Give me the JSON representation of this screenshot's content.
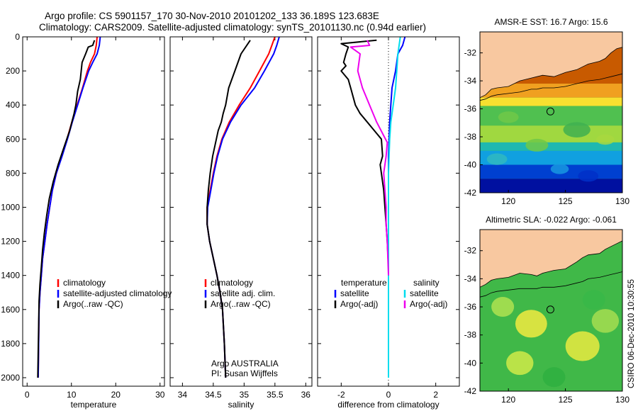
{
  "title": {
    "line1": "Argo profile: CS 5901157_170 30-Nov-2010 20101202_133 36.189S 123.683E",
    "line2": "Climatology: CARS2009. Satellite-adjusted climatology: synTS_20101130.nc (0.94d earlier)"
  },
  "credit": "CSIRO 06-Dec-2010 10:30:55",
  "colors": {
    "climatology": "#ff0000",
    "satellite": "#0000ff",
    "argo": "#000000",
    "sal_satellite": "#00ddee",
    "sal_argo": "#ee00ee",
    "land": "#f8c8a0"
  },
  "chart_data": [
    {
      "id": "temp",
      "type": "line",
      "xlabel": "temperature",
      "ylabel": "",
      "xlim": [
        -1,
        31
      ],
      "ylim": [
        2050,
        0
      ],
      "xticks": [
        "0",
        "10",
        "20",
        "30"
      ],
      "xtick_values": [
        0,
        10,
        20,
        30
      ],
      "yticks": [
        "0",
        "200",
        "400",
        "600",
        "800",
        "1000",
        "1200",
        "1400",
        "1600",
        "1800",
        "2000"
      ],
      "ytick_values": [
        0,
        200,
        400,
        600,
        800,
        1000,
        1200,
        1400,
        1600,
        1800,
        2000
      ],
      "legend": [
        "climatology",
        "satellite-adjusted climatology",
        "Argo(..raw -QC)"
      ],
      "legend_colors": [
        "#ff0000",
        "#0000ff",
        "#000000"
      ],
      "series": [
        {
          "name": "climatology",
          "color": "#ff0000",
          "x": [
            15.8,
            15.6,
            15.2,
            14.3,
            13.6,
            12.5,
            11.3,
            10.1,
            9.0,
            7.8,
            6.6,
            5.7,
            5.1,
            4.5,
            4.0,
            3.5,
            3.2,
            2.9,
            2.7,
            2.6,
            2.5
          ],
          "y": [
            0,
            50,
            100,
            150,
            200,
            300,
            400,
            500,
            600,
            700,
            800,
            900,
            1000,
            1100,
            1200,
            1300,
            1400,
            1500,
            1600,
            1800,
            2000
          ]
        },
        {
          "name": "satellite-adjusted climatology",
          "color": "#0000ff",
          "x": [
            16.5,
            16.3,
            15.8,
            14.8,
            13.9,
            12.6,
            11.4,
            10.2,
            9.1,
            7.9,
            6.6,
            5.7,
            5.1,
            4.5,
            4.0,
            3.5,
            3.2,
            2.9,
            2.7,
            2.6,
            2.5
          ],
          "y": [
            0,
            50,
            100,
            150,
            200,
            300,
            400,
            500,
            600,
            700,
            800,
            900,
            1000,
            1100,
            1200,
            1300,
            1400,
            1500,
            1600,
            1800,
            2000
          ]
        },
        {
          "name": "Argo(..raw -QC)",
          "color": "#000000",
          "x": [
            15.2,
            14.8,
            13.8,
            13.2,
            12.4,
            12.0,
            11.4,
            11.0,
            10.6,
            9.6,
            8.3,
            7.0,
            5.9,
            5.0,
            4.4,
            3.9,
            3.5,
            3.2,
            2.9,
            2.7,
            2.6,
            2.5,
            2.4
          ],
          "y": [
            20,
            50,
            60,
            100,
            150,
            250,
            320,
            400,
            450,
            550,
            650,
            750,
            850,
            950,
            1050,
            1150,
            1250,
            1350,
            1450,
            1550,
            1700,
            1850,
            2000
          ]
        }
      ]
    },
    {
      "id": "sal",
      "type": "line",
      "xlabel": "salinity",
      "xlim": [
        33.8,
        36.1
      ],
      "ylim": [
        2050,
        0
      ],
      "xticks": [
        "34",
        "34.5",
        "35",
        "35.5",
        "36"
      ],
      "xtick_values": [
        34,
        34.5,
        35,
        35.5,
        36
      ],
      "legend": [
        "climatology",
        "satellite adj. clim.",
        "Argo(..raw -QC)"
      ],
      "legend_colors": [
        "#ff0000",
        "#0000ff",
        "#000000"
      ],
      "annotation": [
        "Argo AUSTRALIA",
        "PI: Susan Wijffels"
      ],
      "series": [
        {
          "name": "climatology",
          "color": "#ff0000",
          "x": [
            35.5,
            35.45,
            35.4,
            35.25,
            35.1,
            34.92,
            34.76,
            34.64,
            34.56,
            34.5,
            34.45,
            34.4,
            34.4,
            34.44,
            34.5,
            34.56,
            34.61,
            34.65,
            34.68,
            34.7
          ],
          "y": [
            0,
            50,
            100,
            200,
            300,
            400,
            500,
            600,
            700,
            800,
            900,
            1000,
            1100,
            1200,
            1300,
            1400,
            1500,
            1600,
            1800,
            2000
          ]
        },
        {
          "name": "satellite adj. clim.",
          "color": "#0000ff",
          "x": [
            35.57,
            35.53,
            35.48,
            35.33,
            35.17,
            34.95,
            34.78,
            34.65,
            34.57,
            34.51,
            34.46,
            34.41,
            34.4,
            34.44,
            34.5,
            34.56,
            34.61,
            34.65,
            34.68,
            34.7
          ],
          "y": [
            0,
            50,
            100,
            200,
            300,
            400,
            500,
            600,
            700,
            800,
            900,
            1000,
            1100,
            1200,
            1300,
            1400,
            1500,
            1600,
            1800,
            2000
          ]
        },
        {
          "name": "Argo(..raw -QC)",
          "color": "#000000",
          "x": [
            35.1,
            34.95,
            34.85,
            34.75,
            34.7,
            34.66,
            34.63,
            34.58,
            34.55,
            34.52,
            34.49,
            34.45,
            34.42,
            34.4,
            34.4,
            34.44,
            34.5,
            34.56,
            34.61,
            34.65,
            34.68,
            34.7
          ],
          "y": [
            20,
            100,
            200,
            300,
            400,
            450,
            500,
            550,
            600,
            650,
            700,
            800,
            900,
            1000,
            1100,
            1200,
            1300,
            1400,
            1500,
            1600,
            1800,
            2000
          ]
        }
      ]
    },
    {
      "id": "diff",
      "type": "line",
      "xlabel": "difference from climatology",
      "xlim": [
        -3,
        3
      ],
      "ylim": [
        2050,
        0
      ],
      "xticks": [
        "-2",
        "0",
        "2"
      ],
      "xtick_values": [
        -2,
        0,
        2
      ],
      "legend_left_header": "temperature",
      "legend_right_header": "salinity",
      "legend_left": [
        "satellite",
        "Argo(-adj)"
      ],
      "legend_right": [
        "satellite",
        "Argo(-adj)"
      ],
      "legend_left_colors": [
        "#0000ff",
        "#000000"
      ],
      "legend_right_colors": [
        "#00ddee",
        "#ee00ee"
      ],
      "series": [
        {
          "name": "temperature satellite",
          "color": "#0000ff",
          "x": [
            0.7,
            0.6,
            0.4,
            0.3,
            0.15,
            0.1,
            0.05,
            0.0,
            0.0,
            0.0
          ],
          "y": [
            0,
            50,
            100,
            200,
            300,
            400,
            500,
            700,
            1000,
            2000
          ]
        },
        {
          "name": "temperature Argo(-adj)",
          "color": "#000000",
          "x": [
            -0.5,
            -2.0,
            -1.7,
            -1.8,
            -1.9,
            -1.8,
            -2.0,
            -1.7,
            -1.6,
            -1.5,
            -1.4,
            -1.2,
            -0.9,
            -0.6,
            -0.3,
            -0.25,
            -0.35,
            -0.3,
            -0.2,
            -0.15,
            -0.1,
            -0.05,
            0.0
          ],
          "y": [
            20,
            40,
            60,
            100,
            150,
            170,
            200,
            250,
            300,
            350,
            400,
            450,
            500,
            550,
            600,
            700,
            750,
            800,
            900,
            1000,
            1100,
            1200,
            1350
          ]
        },
        {
          "name": "salinity satellite",
          "color": "#00ddee",
          "x": [
            0.5,
            0.45,
            0.4,
            0.35,
            0.3,
            0.2,
            0.1,
            0.05,
            0.0,
            0.0,
            0.0
          ],
          "y": [
            0,
            50,
            100,
            200,
            300,
            400,
            500,
            600,
            800,
            1200,
            2000
          ]
        },
        {
          "name": "salinity Argo(-adj)",
          "color": "#ee00ee",
          "x": [
            -0.9,
            -0.8,
            -1.6,
            -1.2,
            -1.3,
            -1.1,
            -0.8,
            -0.5,
            -0.2,
            -0.05,
            -0.1,
            -0.2,
            -0.15,
            -0.1,
            -0.1,
            -0.05,
            0.0
          ],
          "y": [
            20,
            50,
            60,
            100,
            200,
            300,
            400,
            500,
            580,
            620,
            700,
            800,
            900,
            1000,
            1100,
            1200,
            1400
          ]
        }
      ]
    },
    {
      "id": "sst_map",
      "type": "heatmap",
      "title": "AMSR-E SST: 16.7 Argo: 15.6",
      "xlim": [
        117.5,
        130
      ],
      "ylim": [
        -42,
        -30.5
      ],
      "xticks": [
        "120",
        "125",
        "130"
      ],
      "xtick_values": [
        120,
        125,
        130
      ],
      "yticks": [
        "-32",
        "-34",
        "-36",
        "-38",
        "-40",
        "-42"
      ],
      "ytick_values": [
        -32,
        -34,
        -36,
        -38,
        -40,
        -42
      ],
      "float_position": [
        123.683,
        -36.189
      ],
      "coast_lon": [
        117.5,
        118,
        118.5,
        119,
        120,
        121,
        122,
        122.5,
        123,
        124,
        125,
        126,
        126.5,
        127,
        128,
        128.5,
        129,
        129.5,
        130
      ],
      "coast_lat": [
        -35.2,
        -35.0,
        -34.6,
        -34.5,
        -34.4,
        -34.0,
        -33.8,
        -33.7,
        -33.6,
        -33.7,
        -33.4,
        -33.2,
        -33.0,
        -32.8,
        -32.6,
        -32.4,
        -32.0,
        -31.7,
        -31.6
      ],
      "contour_lat": [
        -35.4,
        -35.3,
        -35.1,
        -35.0,
        -34.9,
        -34.8,
        -34.6,
        -34.6,
        -34.5,
        -34.5,
        -34.4,
        -34.2,
        -34.1,
        -34.0,
        -33.9,
        -33.8,
        -33.7,
        -33.6,
        -33.5
      ],
      "color_bands": [
        {
          "lat": -34.2,
          "color": "#c85a00"
        },
        {
          "lat": -35.2,
          "color": "#f0a020"
        },
        {
          "lat": -35.8,
          "color": "#f8e030"
        },
        {
          "lat": -37.2,
          "color": "#50c050"
        },
        {
          "lat": -38.4,
          "color": "#a0d840"
        },
        {
          "lat": -39.0,
          "color": "#20b8b0"
        },
        {
          "lat": -40.0,
          "color": "#10a0e0"
        },
        {
          "lat": -41.0,
          "color": "#0040d0"
        },
        {
          "lat": -42.0,
          "color": "#0010a0"
        }
      ]
    },
    {
      "id": "sla_map",
      "type": "heatmap",
      "title": "Altimetric SLA: -0.022 Argo: -0.061",
      "xlim": [
        117.5,
        130
      ],
      "ylim": [
        -42,
        -30.5
      ],
      "xticks": [
        "120",
        "125",
        "130"
      ],
      "xtick_values": [
        120,
        125,
        130
      ],
      "yticks": [
        "-32",
        "-34",
        "-36",
        "-38",
        "-40",
        "-42"
      ],
      "ytick_values": [
        -32,
        -34,
        -36,
        -38,
        -40,
        -42
      ],
      "float_position": [
        123.683,
        -36.189
      ],
      "coast_lon": [
        117.5,
        118,
        118.5,
        119,
        120,
        121,
        122,
        122.5,
        123,
        124,
        125,
        126,
        126.5,
        127,
        128,
        128.5,
        129,
        129.5,
        130
      ],
      "coast_lat": [
        -34.6,
        -34.4,
        -34.1,
        -34.0,
        -33.9,
        -33.6,
        -33.7,
        -33.8,
        -33.6,
        -33.4,
        -33.3,
        -32.8,
        -32.5,
        -32.3,
        -32.2,
        -31.9,
        -31.7,
        -31.5,
        -31.3
      ],
      "contour_lat": [
        -35.3,
        -35.2,
        -35.0,
        -34.9,
        -34.8,
        -34.7,
        -34.7,
        -34.7,
        -34.6,
        -34.6,
        -34.5,
        -34.3,
        -34.2,
        -34.0,
        -33.9,
        -33.8,
        -33.7,
        -33.6,
        -33.5
      ],
      "blobs": [
        {
          "lon": 122.0,
          "lat": -37.2,
          "r": 1.4,
          "color": "#e8e840"
        },
        {
          "lon": 119.5,
          "lat": -36.0,
          "r": 1.0,
          "color": "#a8e050"
        },
        {
          "lon": 126.5,
          "lat": -38.8,
          "r": 1.5,
          "color": "#e0e840"
        },
        {
          "lon": 121.0,
          "lat": -40.0,
          "r": 1.2,
          "color": "#c8e848"
        },
        {
          "lon": 128.5,
          "lat": -37.0,
          "r": 1.2,
          "color": "#a0dc50"
        },
        {
          "lon": 124.0,
          "lat": -41.0,
          "r": 1.0,
          "color": "#30b040"
        },
        {
          "lon": 127.5,
          "lat": -35.5,
          "r": 1.0,
          "color": "#38b848"
        }
      ]
    }
  ]
}
